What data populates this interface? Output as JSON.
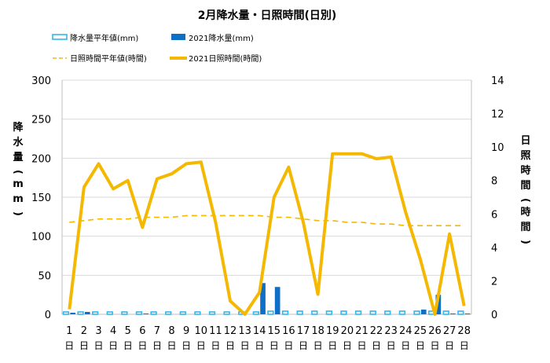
{
  "chart_data": {
    "type": "bar",
    "title": "2月降水量・日照時間(日別)",
    "categories": [
      "1",
      "2",
      "3",
      "4",
      "5",
      "6",
      "7",
      "8",
      "9",
      "10",
      "11",
      "12",
      "13",
      "14",
      "15",
      "16",
      "17",
      "18",
      "19",
      "20",
      "21",
      "22",
      "23",
      "24",
      "25",
      "26",
      "27",
      "28"
    ],
    "day_suffix": "日",
    "ylabel_left": "降水量(mm)",
    "ylabel_right": "日照時間(時間)",
    "ylim_left": [
      0,
      300
    ],
    "ylim_right": [
      0,
      14
    ],
    "yticks_left": [
      0,
      50,
      100,
      150,
      200,
      250,
      300
    ],
    "yticks_right": [
      0,
      2,
      4,
      6,
      8,
      10,
      12,
      14
    ],
    "grid": true,
    "legend_placement": "top",
    "series": [
      {
        "name": "降水量平年値(mm)",
        "axis": "left",
        "kind": "bar-outline",
        "color": "#33b5ee",
        "values": [
          3,
          3,
          3,
          3,
          3,
          3,
          3,
          3,
          3,
          3,
          3,
          3,
          3,
          3,
          4,
          4,
          4,
          4,
          4,
          4,
          4,
          4,
          4,
          4,
          4,
          4,
          4,
          4
        ]
      },
      {
        "name": "2021降水量(mm)",
        "axis": "left",
        "kind": "bar",
        "color": "#0f6fc6",
        "values": [
          2,
          3,
          0,
          0,
          0,
          1,
          0,
          0,
          0,
          0,
          0,
          0,
          0,
          40,
          35,
          0,
          0,
          0,
          0,
          0,
          0,
          0,
          0,
          0,
          6,
          25,
          1,
          1
        ]
      },
      {
        "name": "日照時間平年値(時間)",
        "axis": "right",
        "kind": "dashed-line",
        "color": "#f5b800",
        "values": [
          5.5,
          5.6,
          5.7,
          5.7,
          5.7,
          5.8,
          5.8,
          5.8,
          5.9,
          5.9,
          5.9,
          5.9,
          5.9,
          5.9,
          5.8,
          5.8,
          5.7,
          5.6,
          5.6,
          5.5,
          5.5,
          5.4,
          5.4,
          5.3,
          5.3,
          5.3,
          5.3,
          5.3
        ]
      },
      {
        "name": "2021日照時間(時間)",
        "axis": "right",
        "kind": "line",
        "color": "#f5b800",
        "values": [
          0.3,
          7.6,
          9.0,
          7.5,
          8.0,
          5.2,
          8.1,
          8.4,
          9.0,
          9.1,
          5.5,
          0.8,
          0.0,
          1.3,
          7.0,
          8.8,
          5.5,
          1.2,
          9.6,
          9.6,
          9.6,
          9.3,
          9.4,
          6.1,
          3.3,
          0.0,
          4.8,
          0.5
        ]
      }
    ]
  }
}
